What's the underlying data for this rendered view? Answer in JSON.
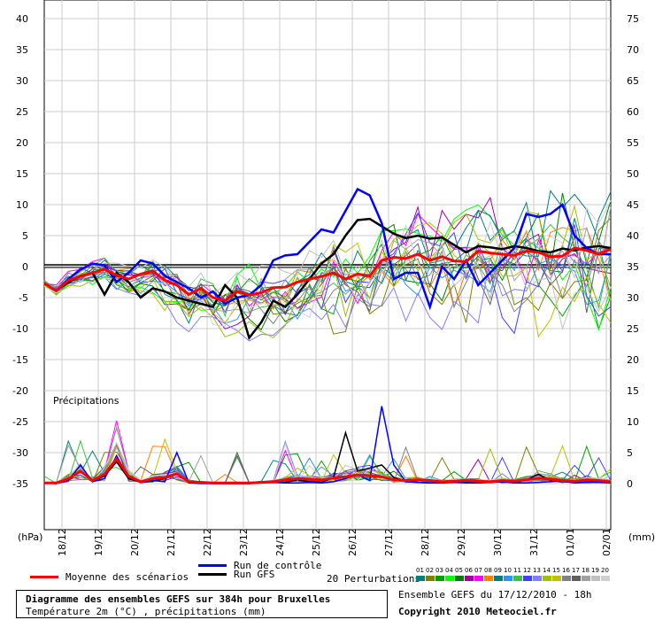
{
  "chart_data": {
    "type": "line",
    "title": "Diagramme des ensembles GEFS sur 384h pour Bruxelles",
    "subtitle": "Température 2m (°C) , précipitations (mm)",
    "left_axis": {
      "unit": "(hPa)",
      "ticks": [
        40,
        35,
        30,
        25,
        20,
        15,
        10,
        5,
        0,
        -5,
        -10,
        -15,
        -20,
        -25,
        -30,
        -35
      ]
    },
    "right_axis": {
      "unit": "(mm)",
      "ticks": [
        75,
        70,
        65,
        60,
        55,
        50,
        45,
        40,
        35,
        30,
        25,
        20,
        15,
        10,
        5,
        0
      ]
    },
    "x_ticks": [
      "18/12",
      "19/12",
      "20/12",
      "21/12",
      "22/12",
      "23/12",
      "24/12",
      "25/12",
      "26/12",
      "27/12",
      "28/12",
      "29/12",
      "30/12",
      "31/12",
      "01/01",
      "02/01"
    ],
    "precip_label": "Précipitations",
    "temperature": {
      "series": [
        {
          "name": "Moyenne des scénarios",
          "color": "#ff0000",
          "values": [
            -2.7,
            -3.9,
            -2.2,
            -1.6,
            -1.0,
            -0.4,
            -1.4,
            -2.0,
            -1.2,
            -0.7,
            -2.2,
            -3.0,
            -4.5,
            -3.5,
            -5.0,
            -5.5,
            -4.0,
            -4.6,
            -4.2,
            -3.4,
            -3.3,
            -2.5,
            -2.0,
            -1.6,
            -1.0,
            -2.0,
            -1.2,
            -1.5,
            1.0,
            1.5,
            1.3,
            2.0,
            1.0,
            1.6,
            0.9,
            0.8,
            2.5,
            2.2,
            2.0,
            1.8,
            2.5,
            2.3,
            1.6,
            1.7,
            3.0,
            2.6,
            2.0,
            2.8
          ]
        },
        {
          "name": "Run de contrôle",
          "color": "#0000ff",
          "values": [
            -2.7,
            -3.9,
            -2.0,
            -0.5,
            0.5,
            0.2,
            -2.5,
            -1.0,
            1.0,
            0.5,
            -1.5,
            -2.5,
            -3.5,
            -5.0,
            -4.0,
            -6.0,
            -5.0,
            -4.6,
            -3.0,
            1.0,
            1.8,
            2.0,
            4.0,
            6.0,
            5.5,
            9.0,
            12.5,
            11.5,
            7.0,
            -2.0,
            -1.0,
            -1.0,
            -6.5,
            0.0,
            -2.0,
            1.0,
            -3.0,
            -1.0,
            1.0,
            3.0,
            8.5,
            8.0,
            8.5,
            10.0,
            5.0,
            3.0,
            2.0,
            2.0
          ]
        },
        {
          "name": "Run GFS",
          "color": "#000000",
          "values": [
            -2.7,
            -3.9,
            -2.5,
            -1.5,
            -1.0,
            -4.5,
            -1.0,
            -2.5,
            -5.0,
            -3.5,
            -4.0,
            -5.0,
            -5.5,
            -6.0,
            -6.5,
            -3.0,
            -5.0,
            -11.5,
            -9.0,
            -5.5,
            -6.5,
            -4.5,
            -2.0,
            0.5,
            2.0,
            5.0,
            7.5,
            7.7,
            6.5,
            5.3,
            4.6,
            5.0,
            4.5,
            4.7,
            3.5,
            2.3,
            3.3,
            3.1,
            2.8,
            3.3,
            3.0,
            2.5,
            2.3,
            2.9,
            2.6,
            3.1,
            3.3,
            3.0
          ]
        }
      ]
    },
    "precipitation": {
      "series": [
        {
          "name": "Moyenne des scénarios",
          "color": "#ff0000",
          "values": [
            0.1,
            0.1,
            0.8,
            2.0,
            0.5,
            1.5,
            4.0,
            1.2,
            0.3,
            0.8,
            1.0,
            1.6,
            0.3,
            0.2,
            0.1,
            0.1,
            0.1,
            0.1,
            0.2,
            0.3,
            0.6,
            0.8,
            0.7,
            0.6,
            0.9,
            1.1,
            1.4,
            1.3,
            1.1,
            0.6,
            0.5,
            0.6,
            0.5,
            0.3,
            0.4,
            0.5,
            0.4,
            0.3,
            0.5,
            0.4,
            0.6,
            0.9,
            0.7,
            0.5,
            0.4,
            0.6,
            0.5,
            0.3
          ]
        },
        {
          "name": "Run de contrôle",
          "color": "#0000ff",
          "values": [
            0.1,
            0.0,
            0.5,
            3.0,
            0.3,
            0.8,
            4.5,
            1.0,
            0.2,
            0.5,
            0.3,
            5.0,
            0.1,
            0.0,
            0.0,
            0.0,
            0.0,
            0.0,
            0.1,
            0.2,
            0.1,
            0.1,
            0.2,
            0.1,
            0.3,
            0.8,
            1.5,
            0.5,
            12.5,
            3.0,
            0.3,
            0.2,
            0.1,
            0.1,
            0.2,
            0.1,
            0.1,
            0.2,
            0.3,
            0.1,
            0.1,
            0.2,
            0.3,
            0.4,
            0.1,
            0.2,
            0.2,
            0.1
          ]
        },
        {
          "name": "Run GFS",
          "color": "#000000",
          "values": [
            0.1,
            0.0,
            0.6,
            2.0,
            0.4,
            1.2,
            3.5,
            0.8,
            0.2,
            0.4,
            0.8,
            1.5,
            0.2,
            0.1,
            0.0,
            0.0,
            0.0,
            0.0,
            0.1,
            0.3,
            0.2,
            0.6,
            0.3,
            0.2,
            1.0,
            8.2,
            2.0,
            2.5,
            3.0,
            1.0,
            0.4,
            0.2,
            0.1,
            0.1,
            0.3,
            0.2,
            0.1,
            0.4,
            0.2,
            0.3,
            0.6,
            1.5,
            0.5,
            0.3,
            0.2,
            0.2,
            0.3,
            0.2
          ]
        }
      ]
    },
    "perturbations": {
      "label": "20 Perturbations",
      "count": 20,
      "numbers": [
        "01",
        "02",
        "03",
        "04",
        "05",
        "06",
        "07",
        "08",
        "09",
        "10",
        "11",
        "12",
        "13",
        "14",
        "15",
        "16",
        "17",
        "18",
        "19",
        "20"
      ],
      "colors": [
        "#008080",
        "#808000",
        "#00a000",
        "#00ff00",
        "#008000",
        "#a000a0",
        "#ff00ff",
        "#ff8000",
        "#008080",
        "#3090ff",
        "#40c040",
        "#4040ff",
        "#8080ff",
        "#a0c000",
        "#c0c000",
        "#808080",
        "#606060",
        "#a0a0a0",
        "#c0c0c0",
        "#d0d0d0"
      ]
    }
  },
  "legend": {
    "mean": "Moyenne des scénarios",
    "control": "Run de contrôle",
    "gfs": "Run GFS",
    "perturbations": "20 Perturbations"
  },
  "footer": {
    "run_info": "Ensemble GEFS du 17/12/2010 - 18h",
    "copyright": "Copyright 2010 Meteociel.fr"
  }
}
